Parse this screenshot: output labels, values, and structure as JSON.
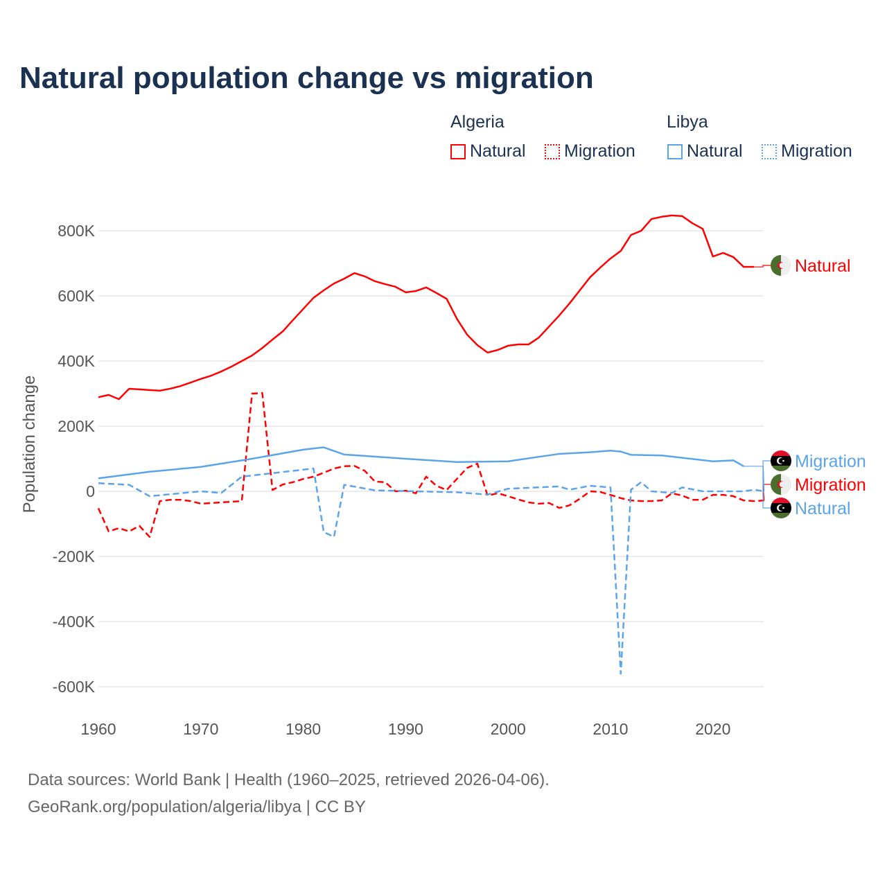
{
  "title": "Natural population change vs migration",
  "legend": {
    "groups": [
      {
        "label": "Algeria",
        "items": [
          "Natural",
          "Migration"
        ],
        "color": "#ff0000"
      },
      {
        "label": "Libya",
        "items": [
          "Natural",
          "Migration"
        ],
        "color": "#5ba4ea"
      }
    ]
  },
  "footer": {
    "line1": "Data sources: World Bank | Health (1960–2025, retrieved 2026-04-06).",
    "line2": "GeoRank.org/population/algeria/libya | CC BY"
  },
  "chart_data": {
    "type": "line",
    "title": "Natural population change vs migration",
    "xlabel": "",
    "ylabel": "Population change",
    "xlim": [
      1960,
      2025
    ],
    "ylim": [
      -650000,
      900000
    ],
    "x_ticks": [
      "1960",
      "1970",
      "1980",
      "1990",
      "2000",
      "2010",
      "2020"
    ],
    "y_ticks": [
      {
        "v": 800000,
        "label": "800K"
      },
      {
        "v": 600000,
        "label": "600K"
      },
      {
        "v": 400000,
        "label": "400K"
      },
      {
        "v": 200000,
        "label": "200K"
      },
      {
        "v": 0,
        "label": "0"
      },
      {
        "v": -200000,
        "label": "-200K"
      },
      {
        "v": -400000,
        "label": "-400K"
      },
      {
        "v": -600000,
        "label": "-600K"
      }
    ],
    "series": [
      {
        "name": "Algeria Natural",
        "end_label": "Natural",
        "color": "#ff0000",
        "dash": false,
        "x": [
          1960,
          1961,
          1962,
          1963,
          1964,
          1965,
          1966,
          1967,
          1968,
          1969,
          1970,
          1971,
          1972,
          1973,
          1974,
          1975,
          1976,
          1977,
          1978,
          1979,
          1980,
          1981,
          1982,
          1983,
          1984,
          1985,
          1986,
          1987,
          1988,
          1989,
          1990,
          1991,
          1992,
          1993,
          1994,
          1995,
          1996,
          1997,
          1998,
          1999,
          2000,
          2001,
          2002,
          2003,
          2004,
          2005,
          2006,
          2007,
          2008,
          2009,
          2010,
          2011,
          2012,
          2013,
          2014,
          2015,
          2016,
          2017,
          2018,
          2019,
          2020,
          2021,
          2022,
          2023,
          2024
        ],
        "y": [
          289,
          296,
          283,
          315,
          313,
          311,
          309,
          315,
          323,
          334,
          345,
          355,
          368,
          383,
          400,
          417,
          440,
          466,
          491,
          526,
          560,
          594,
          617,
          638,
          653,
          670,
          660,
          645,
          636,
          628,
          611,
          615,
          626,
          609,
          591,
          530,
          481,
          449,
          426,
          434,
          447,
          451,
          451,
          472,
          506,
          540,
          577,
          617,
          657,
          687,
          715,
          738,
          787,
          800,
          836,
          843,
          847,
          845,
          823,
          806,
          721,
          732,
          719,
          689,
          689
        ]
      },
      {
        "name": "Algeria Migration",
        "end_label": "Migration",
        "color": "#ff0000",
        "dash": true,
        "x": [
          1960,
          1961,
          1962,
          1963,
          1964,
          1965,
          1966,
          1967,
          1968,
          1969,
          1970,
          1971,
          1972,
          1973,
          1974,
          1975,
          1976,
          1977,
          1978,
          1979,
          1980,
          1981,
          1982,
          1983,
          1984,
          1985,
          1986,
          1987,
          1988,
          1989,
          1990,
          1991,
          1992,
          1993,
          1994,
          1995,
          1996,
          1997,
          1998,
          1999,
          2000,
          2001,
          2002,
          2003,
          2004,
          2005,
          2006,
          2007,
          2008,
          2009,
          2010,
          2011,
          2012,
          2013,
          2014,
          2015,
          2016,
          2017,
          2018,
          2019,
          2020,
          2021,
          2022,
          2023,
          2024,
          2025
        ],
        "y": [
          -52,
          -123,
          -113,
          -123,
          -106,
          -140,
          -30,
          -26,
          -26,
          -30,
          -38,
          -36,
          -34,
          -32,
          -30,
          300,
          302,
          4,
          21,
          28,
          38,
          45,
          57,
          70,
          77,
          78,
          63,
          30,
          28,
          0,
          2,
          -6,
          45,
          17,
          4,
          38,
          72,
          85,
          -13,
          -6,
          -15,
          -25,
          -34,
          -38,
          -36,
          -51,
          -43,
          -23,
          0,
          -2,
          -11,
          -21,
          -28,
          -30,
          -30,
          -28,
          -6,
          -13,
          -26,
          -26,
          -11,
          -11,
          -15,
          -28,
          -30,
          -28
        ]
      },
      {
        "name": "Libya Natural",
        "end_label": "Natural",
        "color": "#5ba4ea",
        "dash": false,
        "x": [
          1960,
          1965,
          1970,
          1975,
          1980,
          1982,
          1984,
          1990,
          1995,
          2000,
          2005,
          2008,
          2010,
          2011,
          2012,
          2015,
          2020,
          2022,
          2023
        ],
        "y": [
          40,
          60,
          75,
          100,
          128,
          135,
          113,
          100,
          90,
          92,
          115,
          120,
          125,
          122,
          112,
          110,
          92,
          95,
          77
        ]
      },
      {
        "name": "Libya Migration",
        "end_label": "Migration",
        "color": "#5ba4ea",
        "dash": true,
        "x": [
          1960,
          1963,
          1965,
          1970,
          1972,
          1974,
          1981,
          1982,
          1983,
          1984,
          1987,
          1995,
          1998,
          2000,
          2005,
          2006,
          2008,
          2010,
          2011,
          2012,
          2013,
          2014,
          2016,
          2017,
          2019,
          2023,
          2024,
          2025
        ],
        "y": [
          25,
          20,
          -15,
          0,
          -5,
          45,
          70,
          -125,
          -140,
          20,
          3,
          -3,
          -10,
          8,
          15,
          5,
          17,
          12,
          -560,
          5,
          28,
          0,
          -5,
          12,
          0,
          0,
          5,
          0
        ]
      }
    ],
    "y_units": "thousands",
    "grid": true,
    "legend_position": "top-right"
  }
}
